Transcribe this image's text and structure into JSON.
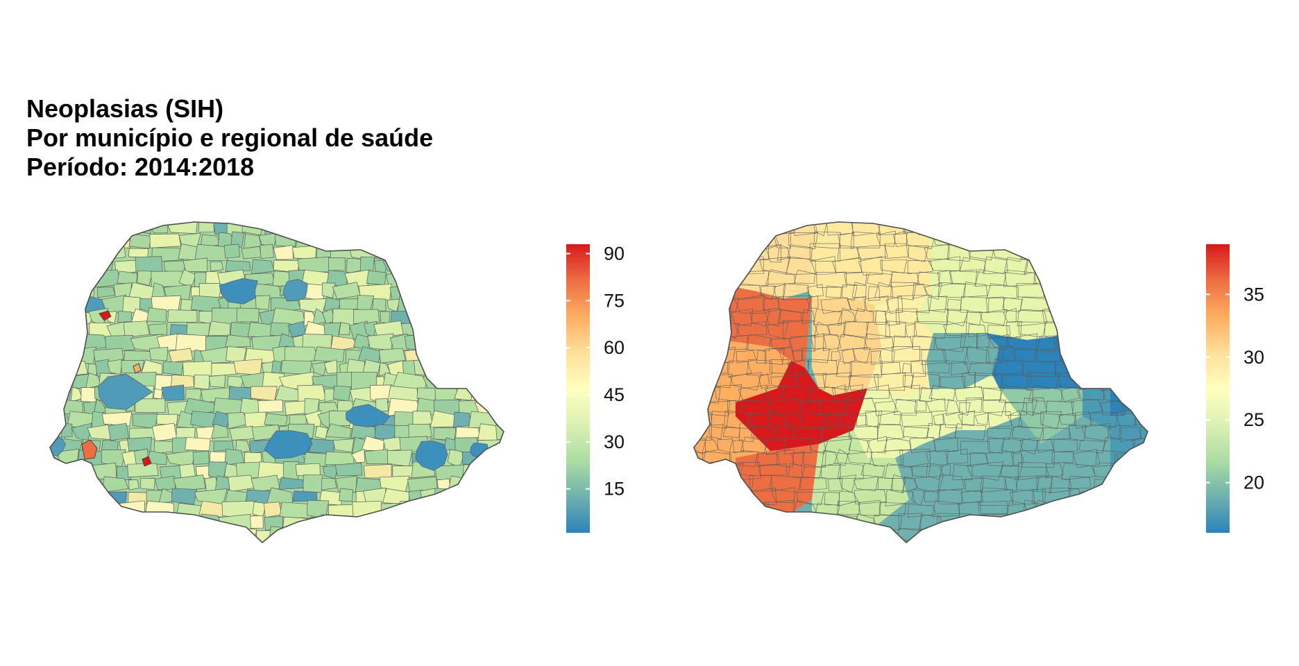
{
  "title": {
    "line1": "Neoplasias (SIH)",
    "line2": "Por município e regional de saúde",
    "line3": "Período: 2014:2018"
  },
  "palette": [
    "#2b83ba",
    "#6fb1ae",
    "#abdda4",
    "#ddf1b4",
    "#ffffbf",
    "#fedf99",
    "#fdae61",
    "#ed6e43",
    "#d7191c"
  ],
  "maps": [
    {
      "id": "municipio",
      "legend": {
        "min": 1,
        "max": 93,
        "ticks": [
          15,
          30,
          45,
          60,
          75,
          90
        ]
      }
    },
    {
      "id": "regional",
      "legend": {
        "min": 16,
        "max": 39,
        "ticks": [
          20,
          25,
          30,
          35
        ]
      }
    }
  ]
}
